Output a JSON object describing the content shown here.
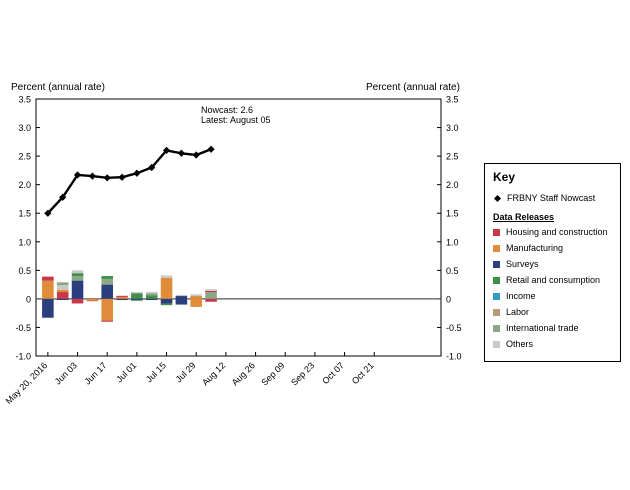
{
  "chart_data": {
    "type": "bar+line",
    "y_axis_title_left": "Percent (annual rate)",
    "y_axis_title_right": "Percent (annual rate)",
    "ylim": [
      -1.0,
      3.5
    ],
    "yticks": [
      "-1.0",
      "-0.5",
      "0",
      "0.5",
      "1.0",
      "1.5",
      "2.0",
      "2.5",
      "3.0",
      "3.5"
    ],
    "ytick_values": [
      -1.0,
      -0.5,
      0,
      0.5,
      1.0,
      1.5,
      2.0,
      2.5,
      3.0,
      3.5
    ],
    "xlim": [
      -0.8,
      26.5
    ],
    "xticks": [
      {
        "label": "May 20, 2016",
        "x": 0
      },
      {
        "label": "Jun 03",
        "x": 2
      },
      {
        "label": "Jun 17",
        "x": 4
      },
      {
        "label": "Jul 01",
        "x": 6
      },
      {
        "label": "Jul 15",
        "x": 8
      },
      {
        "label": "Jul 29",
        "x": 10
      },
      {
        "label": "Aug 12",
        "x": 12
      },
      {
        "label": "Aug 26",
        "x": 14
      },
      {
        "label": "Sep 09",
        "x": 16
      },
      {
        "label": "Sep 23",
        "x": 18
      },
      {
        "label": "Oct 07",
        "x": 20
      },
      {
        "label": "Oct 21",
        "x": 22
      }
    ],
    "nowcast": {
      "name": "FRBNY Staff Nowcast",
      "x": [
        0,
        1,
        2,
        3,
        4,
        5,
        6,
        7,
        8,
        9,
        10,
        11
      ],
      "values": [
        1.5,
        1.78,
        2.17,
        2.15,
        2.12,
        2.13,
        2.2,
        2.3,
        2.6,
        2.55,
        2.52,
        2.62
      ]
    },
    "releases": [
      {
        "x": 0,
        "parts": [
          [
            "Manufacturing",
            0.32
          ],
          [
            "Housing and construction",
            0.07
          ],
          [
            "Surveys",
            -0.33
          ]
        ]
      },
      {
        "x": 1,
        "parts": [
          [
            "Housing and construction",
            0.12
          ],
          [
            "Manufacturing",
            0.04
          ],
          [
            "Others",
            0.08
          ],
          [
            "International trade",
            0.05
          ],
          [
            "Surveys",
            -0.02
          ]
        ]
      },
      {
        "x": 2,
        "parts": [
          [
            "Surveys",
            0.32
          ],
          [
            "International trade",
            0.08
          ],
          [
            "Retail and consumption",
            0.05
          ],
          [
            "Others",
            0.05
          ],
          [
            "Housing and construction",
            -0.08
          ]
        ]
      },
      {
        "x": 3,
        "parts": [
          [
            "Manufacturing",
            -0.03
          ],
          [
            "Housing and construction",
            -0.01
          ]
        ]
      },
      {
        "x": 4,
        "parts": [
          [
            "Surveys",
            0.25
          ],
          [
            "International trade",
            0.1
          ],
          [
            "Retail and consumption",
            0.05
          ],
          [
            "Manufacturing",
            -0.38
          ],
          [
            "Housing and construction",
            -0.02
          ]
        ]
      },
      {
        "x": 5,
        "parts": [
          [
            "Manufacturing",
            0.03
          ],
          [
            "Housing and construction",
            0.02
          ],
          [
            "Others",
            0.01
          ],
          [
            "Surveys",
            -0.02
          ]
        ]
      },
      {
        "x": 6,
        "parts": [
          [
            "Retail and consumption",
            0.1
          ],
          [
            "Others",
            0.02
          ],
          [
            "Surveys",
            -0.02
          ],
          [
            "International trade",
            -0.02
          ]
        ]
      },
      {
        "x": 7,
        "parts": [
          [
            "Retail and consumption",
            0.06
          ],
          [
            "International trade",
            0.04
          ],
          [
            "Others",
            0.02
          ],
          [
            "Surveys",
            -0.02
          ]
        ]
      },
      {
        "x": 8,
        "parts": [
          [
            "Manufacturing",
            0.37
          ],
          [
            "Others",
            0.04
          ],
          [
            "Surveys",
            -0.08
          ],
          [
            "Retail and consumption",
            -0.03
          ]
        ]
      },
      {
        "x": 9,
        "parts": [
          [
            "Surveys",
            0.05
          ],
          [
            "Others",
            0.02
          ],
          [
            "Surveys",
            -0.1
          ]
        ]
      },
      {
        "x": 10,
        "parts": [
          [
            "Manufacturing",
            0.05
          ],
          [
            "Others",
            0.03
          ],
          [
            "Manufacturing",
            -0.14
          ]
        ]
      },
      {
        "x": 11,
        "parts": [
          [
            "International trade",
            0.12
          ],
          [
            "Housing and construction",
            0.02
          ],
          [
            "Others",
            0.03
          ],
          [
            "Housing and construction",
            -0.05
          ]
        ]
      }
    ],
    "annotation": {
      "line1": "Nowcast:  2.6",
      "line2": "Latest: August 05"
    }
  },
  "key": {
    "title": "Key",
    "nowcast_label": "FRBNY Staff Nowcast",
    "releases_title": "Data Releases",
    "items": [
      {
        "label": "Housing and construction",
        "color": "#c8374a"
      },
      {
        "label": "Manufacturing",
        "color": "#e08c3a"
      },
      {
        "label": "Surveys",
        "color": "#2b3f7e"
      },
      {
        "label": "Retail and consumption",
        "color": "#3f8e4a"
      },
      {
        "label": "Income",
        "color": "#2f9bc6"
      },
      {
        "label": "Labor",
        "color": "#b99a78"
      },
      {
        "label": "International trade",
        "color": "#8aa884"
      },
      {
        "label": "Others",
        "color": "#c9c9c9"
      }
    ]
  }
}
